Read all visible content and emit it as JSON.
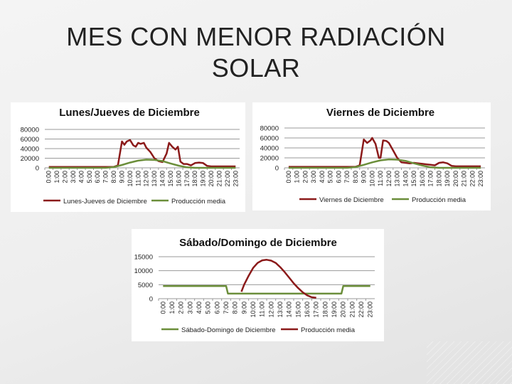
{
  "slide": {
    "title": "MES CON MENOR RADIACIÓN SOLAR"
  },
  "colors": {
    "consumption": "#8b1a1a",
    "production": "#6b8e3a",
    "grid": "#9a9a9a",
    "axis_text": "#222222"
  },
  "hours": [
    "0:00",
    "1:00",
    "2:00",
    "3:00",
    "4:00",
    "5:00",
    "6:00",
    "7:00",
    "8:00",
    "9:00",
    "10:00",
    "11:00",
    "12:00",
    "13:00",
    "14:00",
    "15:00",
    "16:00",
    "17:00",
    "18:00",
    "19:00",
    "20:00",
    "21:00",
    "22:00",
    "23:00"
  ],
  "chart_data": [
    {
      "id": "lj",
      "type": "line",
      "title": "Lunes/Jueves de Diciembre",
      "ylim": [
        0,
        80000
      ],
      "yticks": [
        0,
        20000,
        40000,
        60000,
        80000
      ],
      "grid": true,
      "legend_position": "bottom",
      "series": [
        {
          "name": "Lunes-Jueves de Diciembre",
          "color": "#8b1a1a",
          "points": [
            [
              0,
              2000
            ],
            [
              1,
              2000
            ],
            [
              2,
              2000
            ],
            [
              3,
              2000
            ],
            [
              4,
              2000
            ],
            [
              5,
              2000
            ],
            [
              6,
              2000
            ],
            [
              7,
              2000
            ],
            [
              8,
              2000
            ],
            [
              8.5,
              5000
            ],
            [
              9,
              55000
            ],
            [
              9.3,
              48000
            ],
            [
              9.6,
              55000
            ],
            [
              10,
              58000
            ],
            [
              10.4,
              47000
            ],
            [
              10.7,
              44000
            ],
            [
              11,
              52000
            ],
            [
              11.3,
              50000
            ],
            [
              11.7,
              52000
            ],
            [
              12,
              42000
            ],
            [
              12.5,
              33000
            ],
            [
              13,
              20000
            ],
            [
              13.5,
              14000
            ],
            [
              14,
              12000
            ],
            [
              14.5,
              30000
            ],
            [
              14.8,
              52000
            ],
            [
              15.2,
              44000
            ],
            [
              15.6,
              38000
            ],
            [
              15.9,
              44000
            ],
            [
              16.2,
              13000
            ],
            [
              16.6,
              8000
            ],
            [
              17,
              8000
            ],
            [
              17.5,
              5000
            ],
            [
              18,
              10000
            ],
            [
              18.5,
              11000
            ],
            [
              19,
              10000
            ],
            [
              19.5,
              4000
            ],
            [
              20,
              3000
            ],
            [
              21,
              3000
            ],
            [
              22,
              3000
            ],
            [
              23,
              3000
            ]
          ]
        },
        {
          "name": "Producción media",
          "color": "#6b8e3a",
          "points": [
            [
              0,
              0
            ],
            [
              6,
              0
            ],
            [
              7,
              0
            ],
            [
              8,
              1500
            ],
            [
              9,
              6000
            ],
            [
              10,
              11000
            ],
            [
              11,
              15000
            ],
            [
              12,
              17000
            ],
            [
              13,
              16500
            ],
            [
              14,
              14000
            ],
            [
              15,
              9000
            ],
            [
              16,
              4500
            ],
            [
              17,
              1000
            ],
            [
              18,
              0
            ],
            [
              23,
              0
            ]
          ]
        }
      ]
    },
    {
      "id": "vi",
      "type": "line",
      "title": "Viernes de Diciembre",
      "ylim": [
        0,
        80000
      ],
      "yticks": [
        0,
        20000,
        40000,
        60000,
        80000
      ],
      "grid": true,
      "legend_position": "bottom",
      "series": [
        {
          "name": "Viernes de Diciembre",
          "color": "#8b1a1a",
          "points": [
            [
              0,
              2000
            ],
            [
              1,
              2000
            ],
            [
              2,
              2000
            ],
            [
              3,
              2000
            ],
            [
              4,
              2000
            ],
            [
              5,
              2000
            ],
            [
              6,
              2000
            ],
            [
              7,
              2000
            ],
            [
              8,
              2000
            ],
            [
              8.5,
              5000
            ],
            [
              9,
              57000
            ],
            [
              9.4,
              50000
            ],
            [
              9.8,
              55000
            ],
            [
              10,
              60000
            ],
            [
              10.4,
              48000
            ],
            [
              10.8,
              20000
            ],
            [
              11,
              20000
            ],
            [
              11.3,
              55000
            ],
            [
              11.7,
              54000
            ],
            [
              12,
              50000
            ],
            [
              12.5,
              35000
            ],
            [
              13,
              20000
            ],
            [
              13.5,
              11000
            ],
            [
              14,
              10000
            ],
            [
              14.5,
              9000
            ],
            [
              15,
              10000
            ],
            [
              15.5,
              9000
            ],
            [
              16,
              8000
            ],
            [
              16.5,
              7000
            ],
            [
              17,
              6000
            ],
            [
              17.5,
              5000
            ],
            [
              18,
              10000
            ],
            [
              18.5,
              11000
            ],
            [
              19,
              9000
            ],
            [
              19.5,
              4000
            ],
            [
              20,
              3000
            ],
            [
              21,
              3000
            ],
            [
              22,
              3000
            ],
            [
              23,
              3000
            ]
          ]
        },
        {
          "name": "Producción media",
          "color": "#6b8e3a",
          "points": [
            [
              0,
              0
            ],
            [
              6,
              0
            ],
            [
              7,
              0
            ],
            [
              8,
              1500
            ],
            [
              9,
              6000
            ],
            [
              10,
              11000
            ],
            [
              11,
              15000
            ],
            [
              12,
              17000
            ],
            [
              13,
              16500
            ],
            [
              14,
              14000
            ],
            [
              15,
              9000
            ],
            [
              16,
              4500
            ],
            [
              17,
              1000
            ],
            [
              18,
              0
            ],
            [
              23,
              0
            ]
          ]
        }
      ]
    },
    {
      "id": "sd",
      "type": "line",
      "title": "Sábado/Domingo de Diciembre",
      "ylim": [
        0,
        15000
      ],
      "yticks": [
        0,
        5000,
        10000,
        15000
      ],
      "grid": true,
      "legend_position": "bottom",
      "series": [
        {
          "name": "Sábado-Domingo de Diciembre",
          "color": "#6b8e3a",
          "points": [
            [
              0,
              4500
            ],
            [
              1,
              4500
            ],
            [
              2,
              4500
            ],
            [
              3,
              4500
            ],
            [
              4,
              4500
            ],
            [
              5,
              4500
            ],
            [
              6,
              4500
            ],
            [
              7,
              4500
            ],
            [
              7.2,
              1800
            ],
            [
              8,
              1800
            ],
            [
              9,
              1800
            ],
            [
              10,
              1800
            ],
            [
              11,
              1800
            ],
            [
              12,
              1800
            ],
            [
              13,
              1800
            ],
            [
              14,
              1800
            ],
            [
              15,
              1800
            ],
            [
              16,
              1800
            ],
            [
              17,
              1800
            ],
            [
              18,
              1800
            ],
            [
              19,
              1800
            ],
            [
              19.8,
              1800
            ],
            [
              20,
              4500
            ],
            [
              21,
              4500
            ],
            [
              22,
              4500
            ],
            [
              23,
              4500
            ]
          ]
        },
        {
          "name": "Producción media",
          "color": "#8b1a1a",
          "points": [
            [
              8.7,
              2500
            ],
            [
              9,
              5000
            ],
            [
              9.5,
              8200
            ],
            [
              10,
              11000
            ],
            [
              10.5,
              12800
            ],
            [
              11,
              13700
            ],
            [
              11.5,
              13900
            ],
            [
              12,
              13600
            ],
            [
              12.5,
              12800
            ],
            [
              13,
              11300
            ],
            [
              13.5,
              9500
            ],
            [
              14,
              7500
            ],
            [
              14.5,
              5500
            ],
            [
              15,
              3800
            ],
            [
              15.5,
              2300
            ],
            [
              16,
              1200
            ],
            [
              16.5,
              500
            ],
            [
              17,
              300
            ]
          ]
        }
      ]
    }
  ]
}
